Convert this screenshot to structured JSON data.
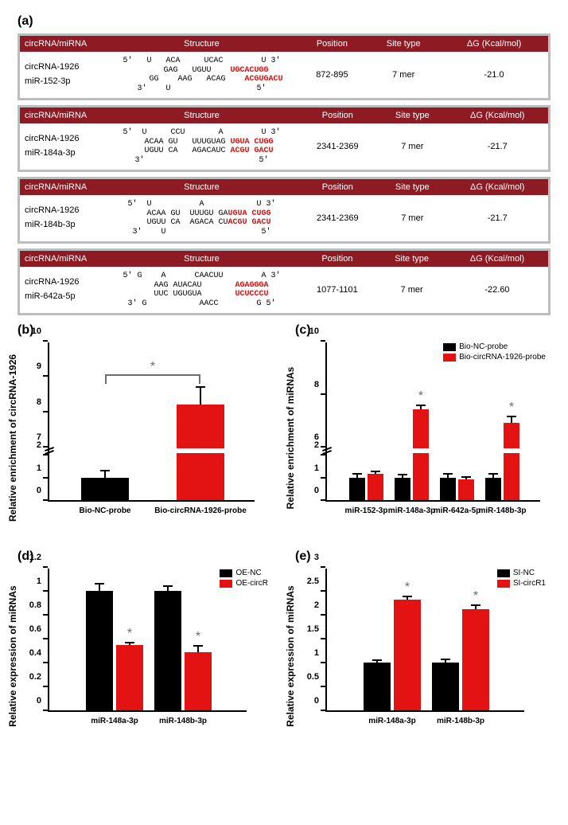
{
  "panel_a": {
    "label": "(a)",
    "headers": [
      "circRNA/miRNA",
      "Structure",
      "Position",
      "Site type",
      "ΔG (Kcal/mol)"
    ],
    "rows": [
      {
        "names": [
          "circRNA-1926",
          "miR-152-3p"
        ],
        "struct_plain_top": "5'   U   ACA     UCAC        U 3'",
        "struct_pair_top": "      GAG   UGUU    ",
        "struct_seed_top": "UGCACUGG",
        "struct_pair_bot": "      GG    AAG   ACAG    ",
        "struct_seed_bot": "ACGUGACU",
        "struct_plain_bot": "3'    U                  5'",
        "position": "872-895",
        "site_type": "7 mer",
        "dg": "-21.0"
      },
      {
        "names": [
          "circRNA-1926",
          "miR-184a-3p"
        ],
        "struct_plain_top": "5'  U     CCU       A        U 3'",
        "struct_pair_top": "   ACAA GU   UUUGUAG ",
        "struct_seed_top": "UGUA CUGG",
        "struct_pair_bot": "   UGUU CA   AGACAUC ",
        "struct_seed_bot": "ACGU GACU",
        "struct_plain_bot": "3'                        5'",
        "position": "2341-2369",
        "site_type": "7 mer",
        "dg": "-21.7"
      },
      {
        "names": [
          "circRNA-1926",
          "miR-184b-3p"
        ],
        "struct_plain_top": "5'  U          A           U 3'",
        "struct_pair_top": "   ACAA GU  UUUGU GA",
        "struct_seed_top": "UGUA CUGG",
        "struct_pair_bot": "   UGUU CA  AGACA CU",
        "struct_seed_bot": "ACGU GACU",
        "struct_plain_bot": "3'    U                    5'",
        "position": "2341-2369",
        "site_type": "7 mer",
        "dg": "-21.7"
      },
      {
        "names": [
          "circRNA-1926",
          "miR-642a-5p"
        ],
        "struct_plain_top": "5' G    A      CAACUU        A 3'",
        "struct_pair_top": "    AAG AUACAU       ",
        "struct_seed_top": "AGAGGGA",
        "struct_pair_bot": "    UUC UGUGUA       ",
        "struct_seed_bot": "UCUCCCU",
        "struct_plain_bot": "3' G           AACC        G 5'",
        "position": "1077-1101",
        "site_type": "7 mer",
        "dg": "-22.60"
      }
    ]
  },
  "panel_b": {
    "label": "(b)",
    "ylabel": "Relative enrichment of circRNA-1926",
    "yticks": [
      0,
      1,
      2,
      7,
      8,
      9,
      10
    ],
    "break_between": [
      2,
      7
    ],
    "categories": [
      "Bio-NC-probe",
      "Bio-circRNA-1926-probe"
    ],
    "values": [
      1.0,
      8.2
    ],
    "errors": [
      0.3,
      0.5
    ],
    "colors": [
      "#000000",
      "#e41313"
    ],
    "sig_star": true
  },
  "panel_c": {
    "label": "(c)",
    "ylabel": "Relative enrichment of miRNAs",
    "yticks": [
      0,
      1,
      2,
      6,
      8,
      10
    ],
    "break_between": [
      2,
      6
    ],
    "legend": [
      "Bio-NC-probe",
      "Bio-circRNA-1926-probe"
    ],
    "categories": [
      "miR-152-3p",
      "miR-148a-3p",
      "miR-642a-5p",
      "miR-148b-3p"
    ],
    "series_values": [
      [
        1.0,
        1.0,
        1.0,
        1.0
      ],
      [
        1.15,
        7.4,
        0.92,
        6.9
      ]
    ],
    "series_errors": [
      [
        0.15,
        0.12,
        0.15,
        0.17
      ],
      [
        0.1,
        0.15,
        0.1,
        0.25
      ]
    ],
    "series_colors": [
      "#000000",
      "#e41313"
    ],
    "sig_idx": [
      1,
      3
    ]
  },
  "panel_d": {
    "label": "(d)",
    "ylabel": "Relative expression of miRNAs",
    "yticks": [
      0.0,
      0.2,
      0.4,
      0.6,
      0.8,
      1.0,
      1.2
    ],
    "legend": [
      "OE-NC",
      "OE-circR"
    ],
    "categories": [
      "miR-148a-3p",
      "miR-148b-3p"
    ],
    "series_values": [
      [
        1.0,
        1.0
      ],
      [
        0.55,
        0.49
      ]
    ],
    "series_errors": [
      [
        0.06,
        0.04
      ],
      [
        0.02,
        0.05
      ]
    ],
    "series_colors": [
      "#000000",
      "#e41313"
    ],
    "sig_idx": [
      0,
      1
    ]
  },
  "panel_e": {
    "label": "(e)",
    "ylabel": "Relative expression of miRNAs",
    "yticks": [
      0.0,
      0.5,
      1.0,
      1.5,
      2.0,
      2.5,
      3.0
    ],
    "legend": [
      "SI-NC",
      "SI-circR1"
    ],
    "categories": [
      "miR-148a-3p",
      "miR-148b-3p"
    ],
    "series_values": [
      [
        1.0,
        1.0
      ],
      [
        2.32,
        2.12
      ]
    ],
    "series_errors": [
      [
        0.05,
        0.07
      ],
      [
        0.06,
        0.08
      ]
    ],
    "series_colors": [
      "#000000",
      "#e41313"
    ],
    "sig_idx": [
      0,
      1
    ]
  }
}
